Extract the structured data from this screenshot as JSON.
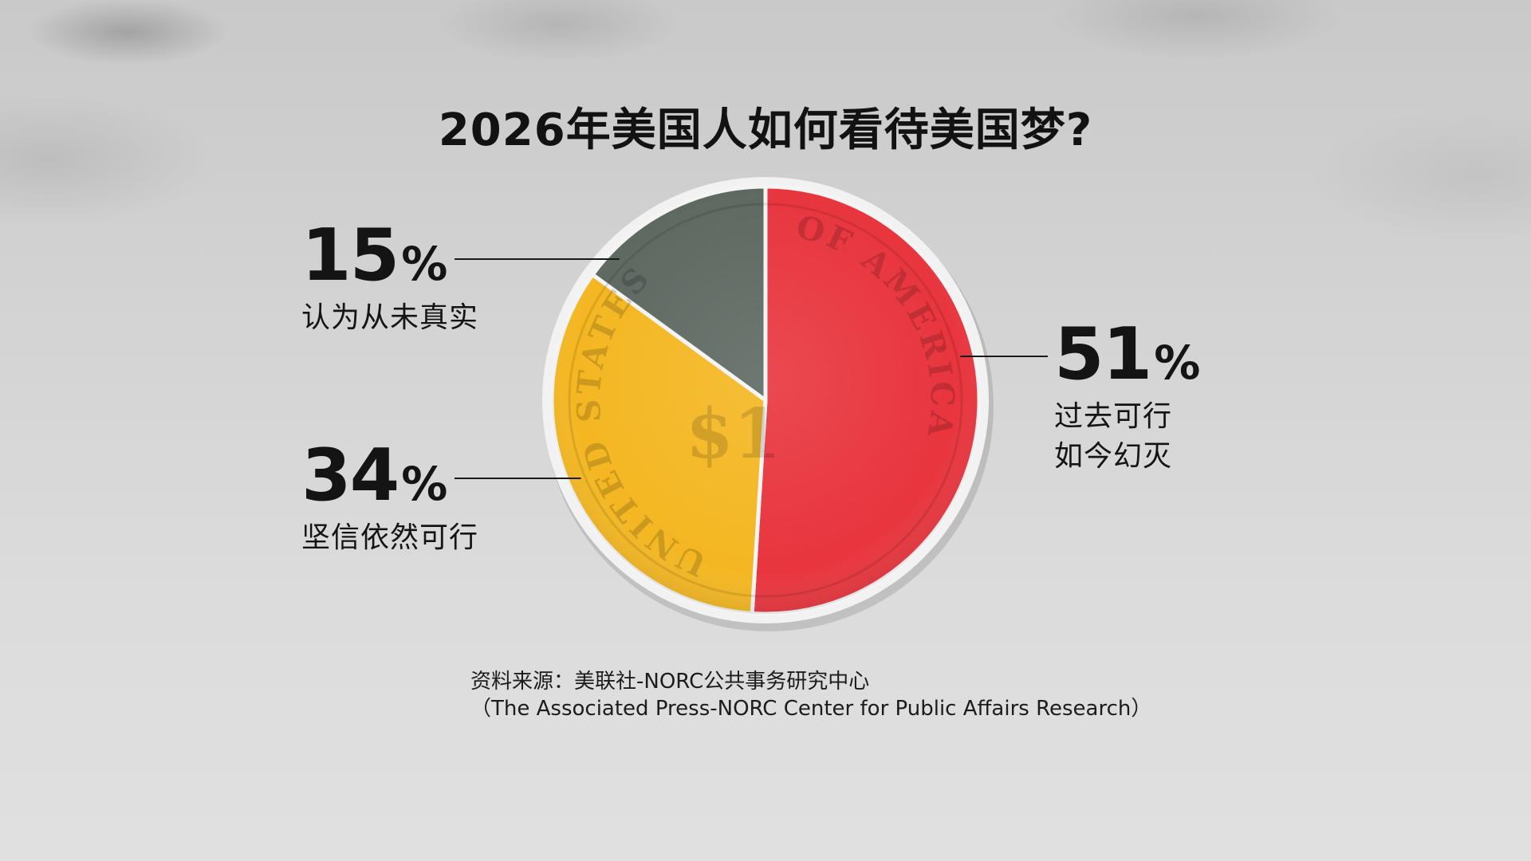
{
  "chart_data": {
    "type": "pie",
    "title": "2026年美国人如何看待美国梦?",
    "slices": [
      {
        "label_lines": [
          "过去可行",
          "如今幻灭"
        ],
        "value": 51,
        "color": "#e8353e"
      },
      {
        "label_lines": [
          "坚信依然可行"
        ],
        "value": 34,
        "color": "#f4b722"
      },
      {
        "label_lines": [
          "认为从未真实"
        ],
        "value": 15,
        "color": "#5e6962"
      }
    ],
    "percent_sign": "%",
    "coin_text": [
      "UNITED STATES",
      "OF AMERICA",
      "$1"
    ],
    "source_lines": [
      "资料来源：美联社-NORC公共事务研究中心",
      "（The Associated Press-NORC Center for Public Affairs Research）"
    ]
  }
}
